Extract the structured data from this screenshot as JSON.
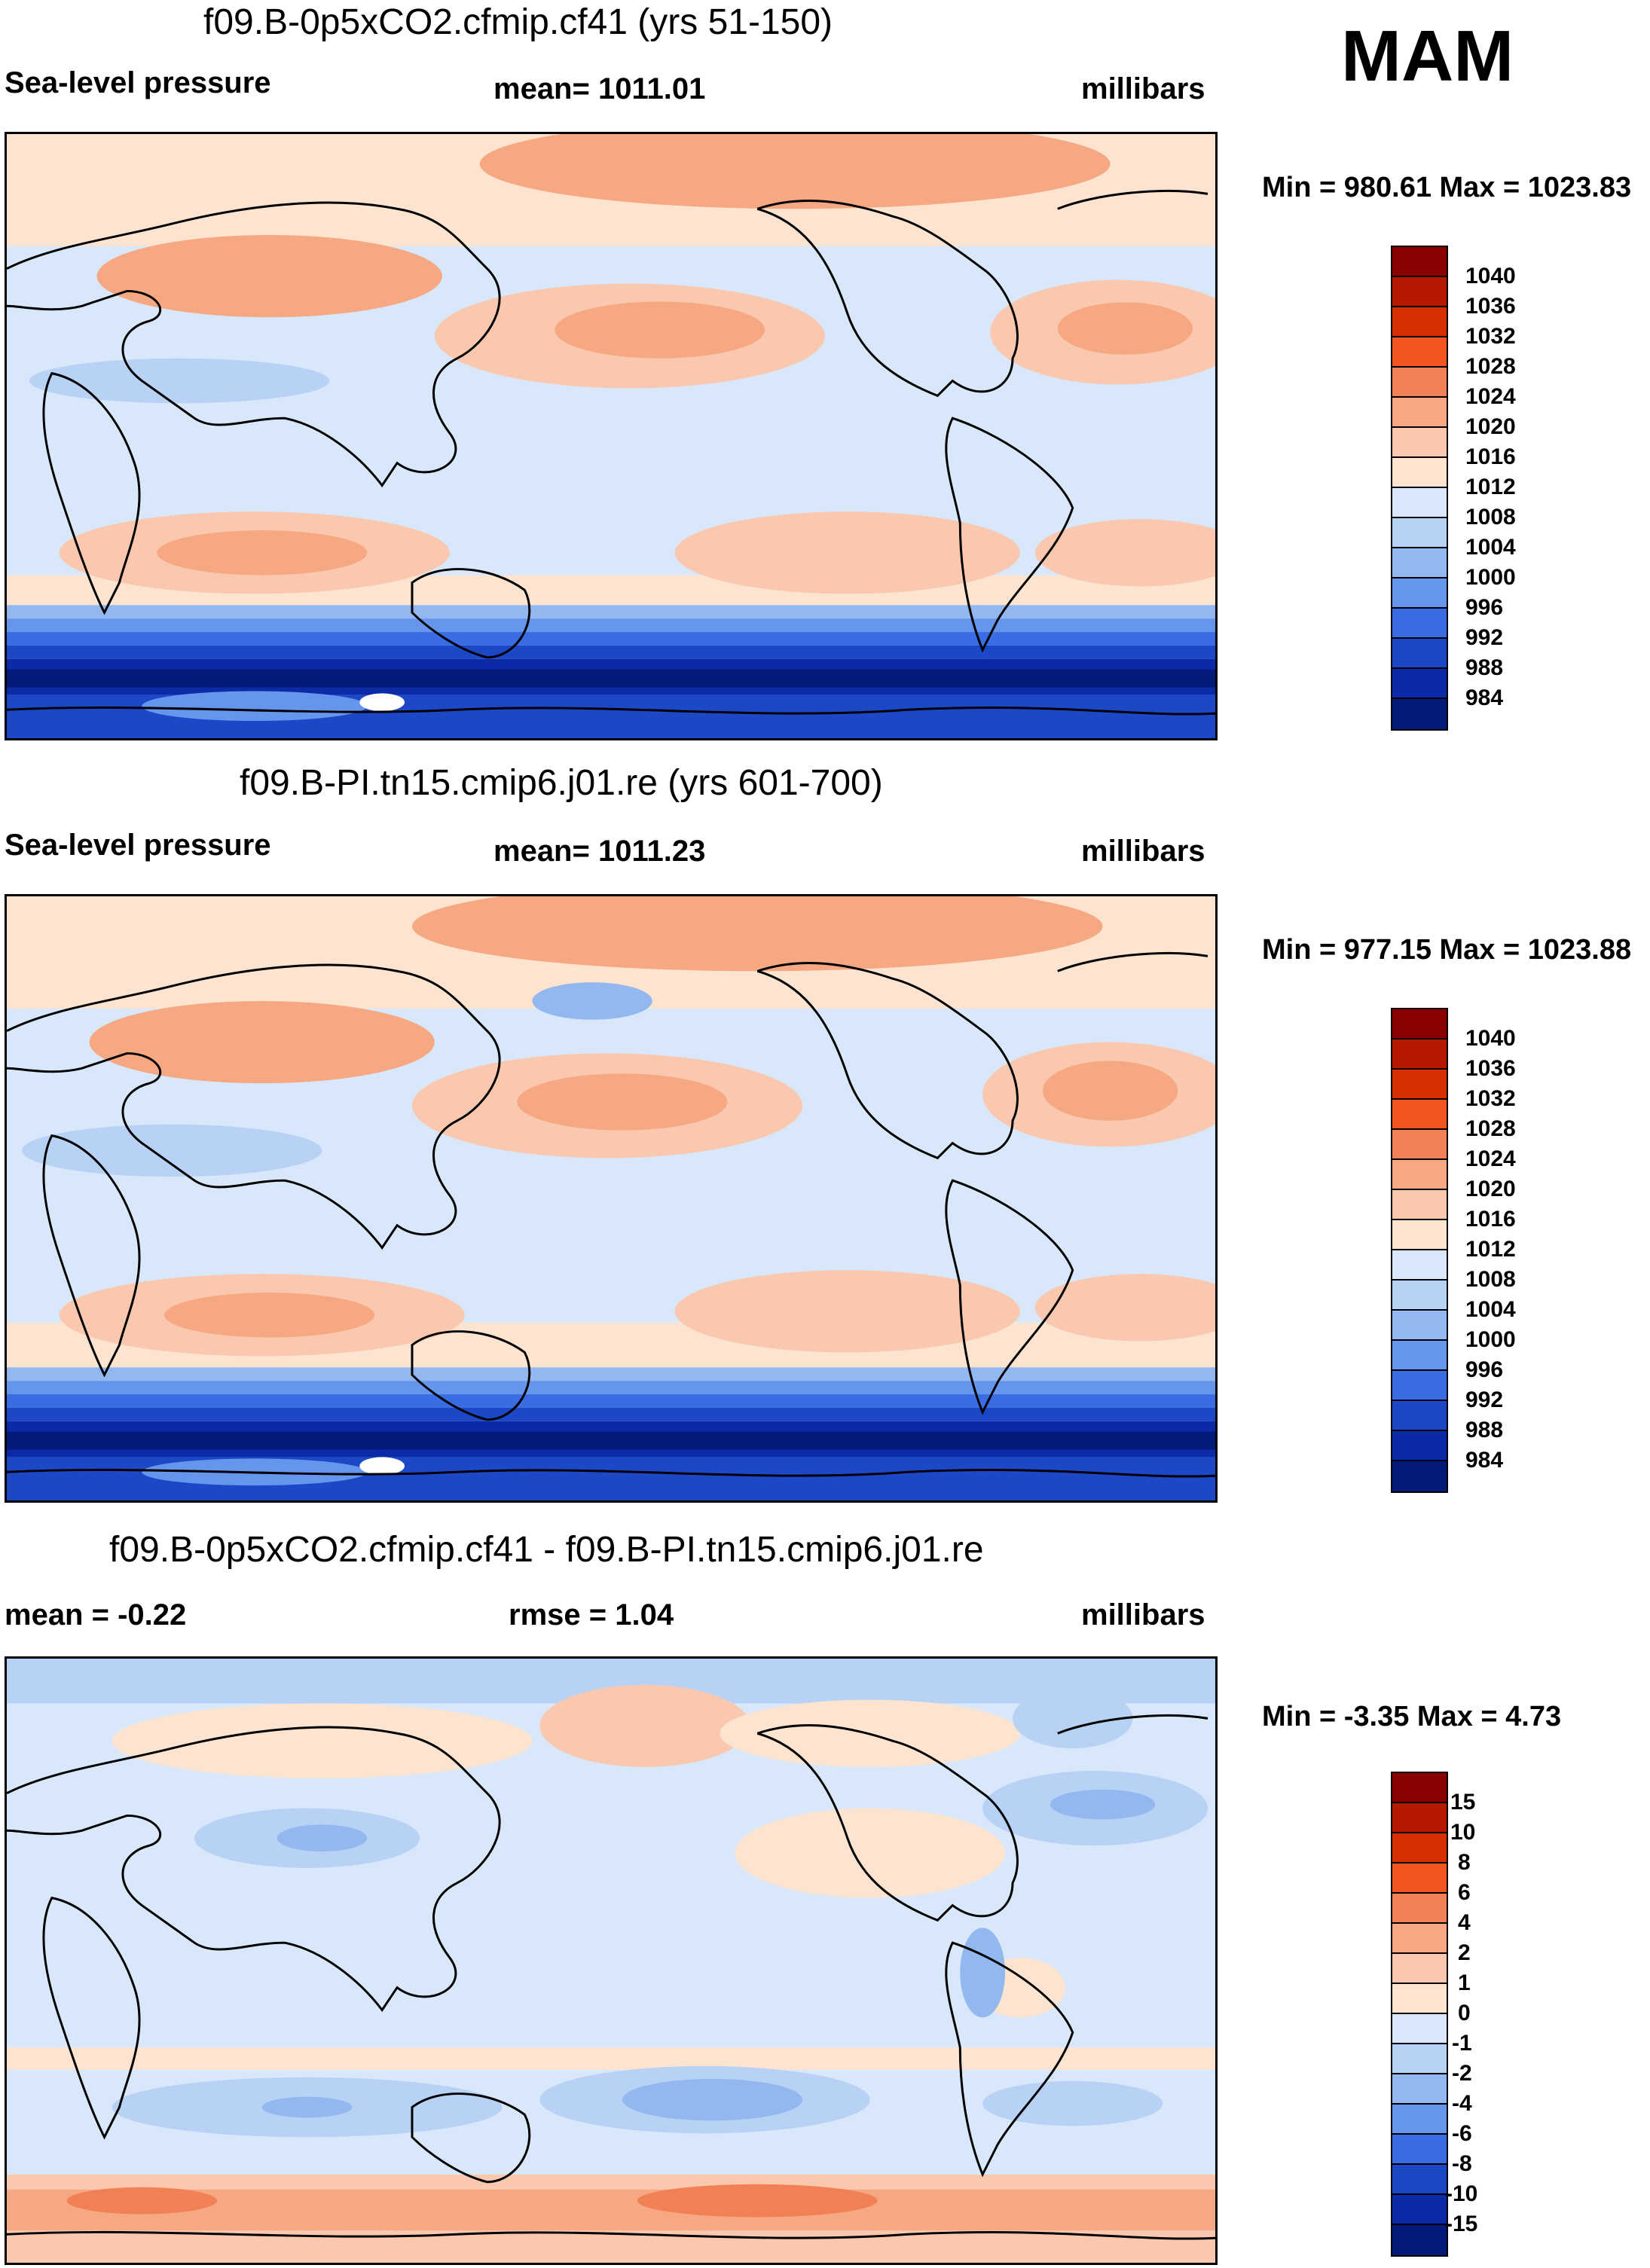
{
  "season": "MAM",
  "panels": [
    {
      "title": "f09.B-0p5xCO2.cfmip.cf41 (yrs 51-150)",
      "left": "Sea-level pressure",
      "center": "mean= 1011.01",
      "right": "millibars",
      "minmax": "Min = 980.61 Max = 1023.83",
      "colorbar": {
        "labels": [
          "1040",
          "1036",
          "1032",
          "1028",
          "1024",
          "1020",
          "1016",
          "1012",
          "1008",
          "1004",
          "1000",
          "996",
          "992",
          "988",
          "984"
        ]
      }
    },
    {
      "title": "f09.B-PI.tn15.cmip6.j01.re (yrs 601-700)",
      "left": "Sea-level pressure",
      "center": "mean= 1011.23",
      "right": "millibars",
      "minmax": "Min = 977.15 Max = 1023.88",
      "colorbar": {
        "labels": [
          "1040",
          "1036",
          "1032",
          "1028",
          "1024",
          "1020",
          "1016",
          "1012",
          "1008",
          "1004",
          "1000",
          "996",
          "992",
          "988",
          "984"
        ]
      }
    },
    {
      "title": "f09.B-0p5xCO2.cfmip.cf41 - f09.B-PI.tn15.cmip6.j01.re",
      "left": "mean =  -0.22",
      "center": "rmse =   1.04",
      "right": "millibars",
      "minmax": "Min =  -3.35 Max =   4.73",
      "colorbar": {
        "labels": [
          "15",
          "10",
          "8",
          "6",
          "4",
          "2",
          "1",
          "0",
          "-1",
          "-2",
          "-4",
          "-6",
          "-8",
          "-10",
          "-15"
        ]
      }
    }
  ],
  "colors": {
    "abs_scale": [
      "#8b0000",
      "#b51a00",
      "#d63000",
      "#f2551e",
      "#f28055",
      "#f5a882",
      "#fac8ae",
      "#fde4d0",
      "#d8e8fa",
      "#b8d2f5",
      "#93b8f0",
      "#6595ec",
      "#3a6de4",
      "#1c48c8",
      "#0a2aa6",
      "#041a7a"
    ],
    "diff_scale": [
      "#8b0000",
      "#b51a00",
      "#d63000",
      "#f2551e",
      "#f28055",
      "#f5a882",
      "#fac8ae",
      "#fde4d0",
      "#d8e8fa",
      "#b8d2f5",
      "#93b8f0",
      "#6595ec",
      "#3a6de4",
      "#1c48c8",
      "#0a2aa6",
      "#041a7a"
    ]
  }
}
